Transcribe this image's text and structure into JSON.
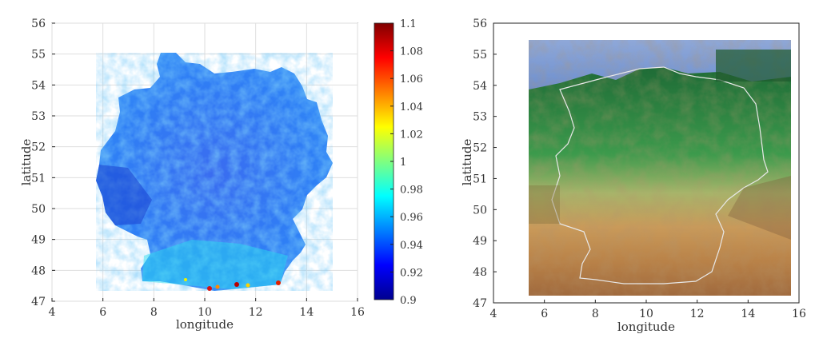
{
  "left_map": {
    "xlabel": "longitude",
    "ylabel": "latitude",
    "x_ticks": [
      4,
      6,
      8,
      10,
      12,
      14,
      16
    ],
    "y_ticks": [
      47,
      48,
      49,
      50,
      51,
      52,
      53,
      54,
      55,
      56
    ],
    "xlim": [
      4,
      16
    ],
    "ylim": [
      47,
      56
    ],
    "grid": true,
    "colormap": "jet",
    "colorbar": {
      "min": 0.9,
      "max": 1.1,
      "ticks": [
        "0.9",
        "0.92",
        "0.94",
        "0.96",
        "0.98",
        "1",
        "1.02",
        "1.04",
        "1.06",
        "1.08",
        "1.1"
      ]
    }
  },
  "right_map": {
    "xlabel": "longitude",
    "ylabel": "latitude",
    "x_ticks": [
      4,
      6,
      8,
      10,
      12,
      14,
      16
    ],
    "y_ticks": [
      47,
      48,
      49,
      50,
      51,
      52,
      53,
      54,
      55,
      56
    ],
    "xlim": [
      4,
      16
    ],
    "ylim": [
      47,
      56
    ],
    "grid": false,
    "basemap": "topographic relief",
    "image_lon_range": [
      5.4,
      15.6
    ],
    "image_lat_range": [
      47.3,
      55.4
    ]
  }
}
